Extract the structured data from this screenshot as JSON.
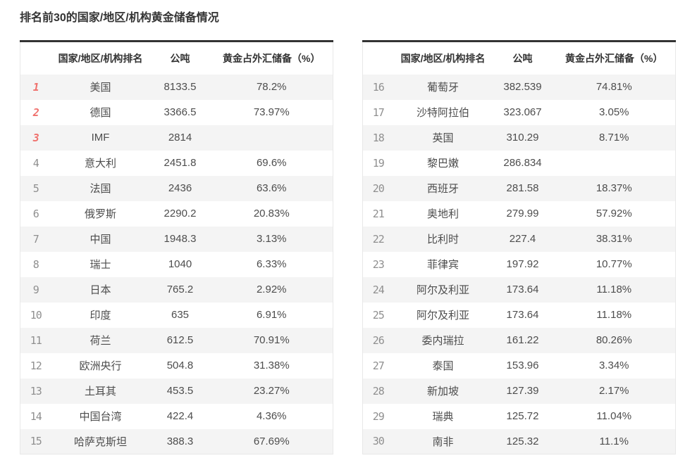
{
  "page": {
    "title": "排名前30的国家/地区/机构黄金储备情况"
  },
  "columns": {
    "rank": "",
    "rank_name": "国家/地区/机构排名",
    "tonnes": "公吨",
    "pct": "黄金占外汇储备（%）"
  },
  "colors": {
    "accent_red": "#f0716d",
    "rank_gray": "#8f8f8f",
    "row_stripe": "#f4f4f4",
    "table_top_border": "#333333",
    "table_side_border": "#e8e8e8",
    "text_dark": "#333333",
    "text_cell": "#4d4d4d"
  },
  "highlight_top_ranks": 3,
  "tables": [
    {
      "rows": [
        {
          "rank": "1",
          "name": "美国",
          "tonnes": "8133.5",
          "pct": "78.2%"
        },
        {
          "rank": "2",
          "name": "德国",
          "tonnes": "3366.5",
          "pct": "73.97%"
        },
        {
          "rank": "3",
          "name": "IMF",
          "tonnes": "2814",
          "pct": ""
        },
        {
          "rank": "4",
          "name": "意大利",
          "tonnes": "2451.8",
          "pct": "69.6%"
        },
        {
          "rank": "5",
          "name": "法国",
          "tonnes": "2436",
          "pct": "63.6%"
        },
        {
          "rank": "6",
          "name": "俄罗斯",
          "tonnes": "2290.2",
          "pct": "20.83%"
        },
        {
          "rank": "7",
          "name": "中国",
          "tonnes": "1948.3",
          "pct": "3.13%"
        },
        {
          "rank": "8",
          "name": "瑞士",
          "tonnes": "1040",
          "pct": "6.33%"
        },
        {
          "rank": "9",
          "name": "日本",
          "tonnes": "765.2",
          "pct": "2.92%"
        },
        {
          "rank": "10",
          "name": "印度",
          "tonnes": "635",
          "pct": "6.91%"
        },
        {
          "rank": "11",
          "name": "荷兰",
          "tonnes": "612.5",
          "pct": "70.91%"
        },
        {
          "rank": "12",
          "name": "欧洲央行",
          "tonnes": "504.8",
          "pct": "31.38%"
        },
        {
          "rank": "13",
          "name": "土耳其",
          "tonnes": "453.5",
          "pct": "23.27%"
        },
        {
          "rank": "14",
          "name": "中国台湾",
          "tonnes": "422.4",
          "pct": "4.36%"
        },
        {
          "rank": "15",
          "name": "哈萨克斯坦",
          "tonnes": "388.3",
          "pct": "67.69%"
        }
      ]
    },
    {
      "rows": [
        {
          "rank": "16",
          "name": "葡萄牙",
          "tonnes": "382.539",
          "pct": "74.81%"
        },
        {
          "rank": "17",
          "name": "沙特阿拉伯",
          "tonnes": "323.067",
          "pct": "3.05%"
        },
        {
          "rank": "18",
          "name": "英国",
          "tonnes": "310.29",
          "pct": "8.71%"
        },
        {
          "rank": "19",
          "name": "黎巴嫩",
          "tonnes": "286.834",
          "pct": ""
        },
        {
          "rank": "20",
          "name": "西班牙",
          "tonnes": "281.58",
          "pct": "18.37%"
        },
        {
          "rank": "21",
          "name": "奥地利",
          "tonnes": "279.99",
          "pct": "57.92%"
        },
        {
          "rank": "22",
          "name": "比利时",
          "tonnes": "227.4",
          "pct": "38.31%"
        },
        {
          "rank": "23",
          "name": "菲律宾",
          "tonnes": "197.92",
          "pct": "10.77%"
        },
        {
          "rank": "24",
          "name": "阿尔及利亚",
          "tonnes": "173.64",
          "pct": "11.18%"
        },
        {
          "rank": "25",
          "name": "阿尔及利亚",
          "tonnes": "173.64",
          "pct": "11.18%"
        },
        {
          "rank": "26",
          "name": "委内瑞拉",
          "tonnes": "161.22",
          "pct": "80.26%"
        },
        {
          "rank": "27",
          "name": "泰国",
          "tonnes": "153.96",
          "pct": "3.34%"
        },
        {
          "rank": "28",
          "name": "新加坡",
          "tonnes": "127.39",
          "pct": "2.17%"
        },
        {
          "rank": "29",
          "name": "瑞典",
          "tonnes": "125.72",
          "pct": "11.04%"
        },
        {
          "rank": "30",
          "name": "南非",
          "tonnes": "125.32",
          "pct": "11.1%"
        }
      ]
    }
  ]
}
